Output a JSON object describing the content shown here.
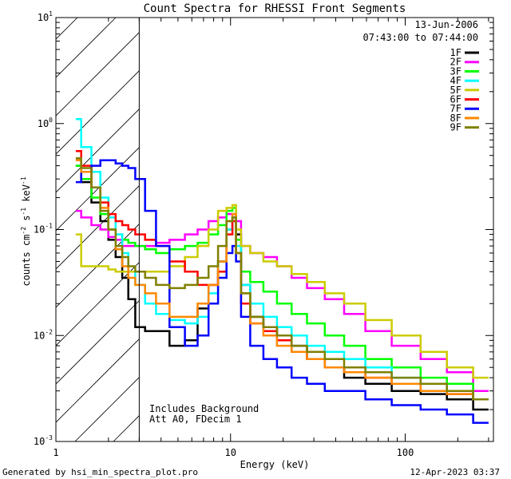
{
  "chart_data": {
    "type": "line",
    "title": "Count Spectra for RHESSI Front Segments",
    "xlabel": "Energy (keV)",
    "ylabel_parts": [
      "counts cm",
      "-2",
      " s",
      "-1",
      " keV",
      "-1"
    ],
    "xscale": "log",
    "yscale": "log",
    "xlim": [
      1,
      320
    ],
    "ylim": [
      0.001,
      10
    ],
    "x_tick_labels": [
      "1",
      "10",
      "100"
    ],
    "y_tick_labels": [
      {
        "base": "10",
        "exp": "-3"
      },
      {
        "base": "10",
        "exp": "-2"
      },
      {
        "base": "10",
        "exp": "-1"
      },
      {
        "base": "10",
        "exp": "0"
      },
      {
        "base": "10",
        "exp": "1"
      }
    ],
    "date": "13-Jun-2006",
    "time_range": "07:43:00 to 07:44:00",
    "annotations": [
      "Includes Background",
      "Att A0, FDecim 1"
    ],
    "hatched_region_keV": [
      1,
      3
    ],
    "series": [
      {
        "name": "1F",
        "color": "#000000",
        "x": [
          1.3,
          1.5,
          1.7,
          1.9,
          2.1,
          2.3,
          2.5,
          2.7,
          3.0,
          3.5,
          4.0,
          5.0,
          6.0,
          7.0,
          8.0,
          9.0,
          10.0,
          10.5,
          11.0,
          12.0,
          14.0,
          17.0,
          20.0,
          25.0,
          30.0,
          40.0,
          50.0,
          70.0,
          100.0,
          150.0,
          200.0,
          300.0
        ],
        "y": [
          0.4,
          0.28,
          0.18,
          0.12,
          0.08,
          0.055,
          0.035,
          0.022,
          0.012,
          0.011,
          0.011,
          0.008,
          0.009,
          0.018,
          0.03,
          0.05,
          0.1,
          0.13,
          0.09,
          0.03,
          0.015,
          0.012,
          0.01,
          0.008,
          0.006,
          0.005,
          0.004,
          0.0035,
          0.003,
          0.0028,
          0.0025,
          0.002
        ]
      },
      {
        "name": "2F",
        "color": "#ff00ff",
        "x": [
          1.3,
          1.5,
          1.7,
          1.9,
          2.1,
          2.3,
          2.5,
          2.7,
          3.0,
          3.5,
          4.0,
          5.0,
          6.0,
          7.0,
          8.0,
          9.0,
          10.0,
          10.5,
          11.0,
          12.0,
          14.0,
          17.0,
          20.0,
          25.0,
          30.0,
          40.0,
          50.0,
          70.0,
          100.0,
          150.0,
          200.0,
          300.0
        ],
        "y": [
          0.15,
          0.13,
          0.11,
          0.1,
          0.085,
          0.08,
          0.07,
          0.07,
          0.07,
          0.07,
          0.075,
          0.08,
          0.09,
          0.1,
          0.12,
          0.13,
          0.14,
          0.14,
          0.12,
          0.07,
          0.06,
          0.055,
          0.045,
          0.035,
          0.028,
          0.022,
          0.016,
          0.011,
          0.008,
          0.006,
          0.0045,
          0.003
        ]
      },
      {
        "name": "3F",
        "color": "#00ff00",
        "x": [
          1.3,
          1.5,
          1.7,
          1.9,
          2.1,
          2.3,
          2.5,
          2.7,
          3.0,
          3.5,
          4.0,
          5.0,
          6.0,
          7.0,
          8.0,
          9.0,
          10.0,
          10.5,
          11.0,
          12.0,
          14.0,
          17.0,
          20.0,
          25.0,
          30.0,
          40.0,
          50.0,
          70.0,
          100.0,
          150.0,
          200.0,
          300.0
        ],
        "y": [
          0.4,
          0.3,
          0.2,
          0.14,
          0.1,
          0.09,
          0.08,
          0.075,
          0.07,
          0.065,
          0.06,
          0.065,
          0.07,
          0.075,
          0.09,
          0.11,
          0.15,
          0.16,
          0.08,
          0.04,
          0.032,
          0.026,
          0.02,
          0.016,
          0.013,
          0.01,
          0.008,
          0.006,
          0.005,
          0.004,
          0.0035,
          0.0025
        ]
      },
      {
        "name": "4F",
        "color": "#00ffff",
        "x": [
          1.3,
          1.5,
          1.7,
          1.9,
          2.1,
          2.3,
          2.5,
          2.7,
          3.0,
          3.5,
          4.0,
          5.0,
          6.0,
          7.0,
          8.0,
          9.0,
          10.0,
          10.5,
          11.0,
          12.0,
          14.0,
          17.0,
          20.0,
          25.0,
          30.0,
          40.0,
          50.0,
          70.0,
          100.0,
          150.0,
          200.0,
          300.0
        ],
        "y": [
          1.1,
          0.6,
          0.35,
          0.2,
          0.13,
          0.09,
          0.06,
          0.04,
          0.03,
          0.02,
          0.016,
          0.014,
          0.013,
          0.015,
          0.025,
          0.05,
          0.1,
          0.13,
          0.07,
          0.03,
          0.02,
          0.015,
          0.012,
          0.01,
          0.008,
          0.007,
          0.006,
          0.005,
          0.004,
          0.0035,
          0.003,
          0.0025
        ]
      },
      {
        "name": "5F",
        "color": "#cccc00",
        "x": [
          1.3,
          1.5,
          1.7,
          1.9,
          2.1,
          2.3,
          2.5,
          2.7,
          3.0,
          3.5,
          4.0,
          5.0,
          6.0,
          7.0,
          8.0,
          9.0,
          10.0,
          10.5,
          11.0,
          12.0,
          14.0,
          17.0,
          20.0,
          25.0,
          30.0,
          40.0,
          50.0,
          70.0,
          100.0,
          150.0,
          200.0,
          300.0
        ],
        "y": [
          0.09,
          0.045,
          0.045,
          0.045,
          0.042,
          0.04,
          0.04,
          0.04,
          0.04,
          0.04,
          0.04,
          0.045,
          0.055,
          0.07,
          0.1,
          0.15,
          0.16,
          0.17,
          0.1,
          0.07,
          0.06,
          0.05,
          0.045,
          0.038,
          0.032,
          0.025,
          0.02,
          0.014,
          0.01,
          0.007,
          0.005,
          0.004
        ]
      },
      {
        "name": "6F",
        "color": "#ff0000",
        "x": [
          1.3,
          1.5,
          1.7,
          1.9,
          2.1,
          2.3,
          2.5,
          2.7,
          3.0,
          3.5,
          4.0,
          5.0,
          6.0,
          7.0,
          8.0,
          9.0,
          10.0,
          10.5,
          11.0,
          12.0,
          14.0,
          17.0,
          20.0,
          25.0,
          30.0,
          40.0,
          50.0,
          70.0,
          100.0,
          150.0,
          200.0,
          300.0
        ],
        "y": [
          0.55,
          0.4,
          0.25,
          0.18,
          0.14,
          0.12,
          0.11,
          0.1,
          0.09,
          0.08,
          0.07,
          0.05,
          0.04,
          0.03,
          0.03,
          0.04,
          0.09,
          0.12,
          0.06,
          0.02,
          0.013,
          0.011,
          0.009,
          0.007,
          0.006,
          0.005,
          0.0045,
          0.004,
          0.0035,
          0.003,
          0.0028,
          0.0025
        ]
      },
      {
        "name": "7F",
        "color": "#0000ff",
        "x": [
          1.3,
          1.5,
          1.7,
          1.9,
          2.1,
          2.3,
          2.5,
          2.7,
          3.0,
          3.5,
          4.0,
          5.0,
          6.0,
          7.0,
          8.0,
          9.0,
          10.0,
          10.5,
          11.0,
          12.0,
          14.0,
          17.0,
          20.0,
          25.0,
          30.0,
          40.0,
          50.0,
          70.0,
          100.0,
          150.0,
          200.0,
          300.0
        ],
        "y": [
          0.28,
          0.35,
          0.4,
          0.45,
          0.45,
          0.42,
          0.4,
          0.38,
          0.3,
          0.15,
          0.07,
          0.012,
          0.008,
          0.01,
          0.02,
          0.035,
          0.06,
          0.07,
          0.05,
          0.015,
          0.008,
          0.006,
          0.005,
          0.004,
          0.0035,
          0.003,
          0.003,
          0.0025,
          0.0022,
          0.002,
          0.0018,
          0.0015
        ]
      },
      {
        "name": "8F",
        "color": "#ff8800",
        "x": [
          1.3,
          1.5,
          1.7,
          1.9,
          2.1,
          2.3,
          2.5,
          2.7,
          3.0,
          3.5,
          4.0,
          5.0,
          6.0,
          7.0,
          8.0,
          9.0,
          10.0,
          10.5,
          11.0,
          12.0,
          14.0,
          17.0,
          20.0,
          25.0,
          30.0,
          40.0,
          50.0,
          70.0,
          100.0,
          150.0,
          200.0,
          300.0
        ],
        "y": [
          0.45,
          0.35,
          0.25,
          0.16,
          0.1,
          0.065,
          0.045,
          0.035,
          0.03,
          0.025,
          0.02,
          0.015,
          0.015,
          0.02,
          0.03,
          0.05,
          0.12,
          0.14,
          0.06,
          0.025,
          0.013,
          0.01,
          0.008,
          0.007,
          0.006,
          0.005,
          0.0045,
          0.004,
          0.0035,
          0.003,
          0.0028,
          0.0025
        ]
      },
      {
        "name": "9F",
        "color": "#808000",
        "x": [
          1.3,
          1.5,
          1.7,
          1.9,
          2.1,
          2.3,
          2.5,
          2.7,
          3.0,
          3.5,
          4.0,
          5.0,
          6.0,
          7.0,
          8.0,
          9.0,
          10.0,
          10.5,
          11.0,
          12.0,
          14.0,
          17.0,
          20.0,
          25.0,
          30.0,
          40.0,
          50.0,
          70.0,
          100.0,
          150.0,
          200.0,
          300.0
        ],
        "y": [
          0.47,
          0.38,
          0.25,
          0.15,
          0.1,
          0.07,
          0.055,
          0.045,
          0.04,
          0.035,
          0.03,
          0.028,
          0.03,
          0.035,
          0.045,
          0.07,
          0.12,
          0.13,
          0.06,
          0.025,
          0.015,
          0.012,
          0.01,
          0.008,
          0.007,
          0.006,
          0.005,
          0.0045,
          0.004,
          0.0035,
          0.003,
          0.0025
        ]
      }
    ]
  },
  "footer": {
    "generated_by": "Generated by hsi_min_spectra_plot.pro",
    "timestamp": "12-Apr-2023 03:37"
  }
}
